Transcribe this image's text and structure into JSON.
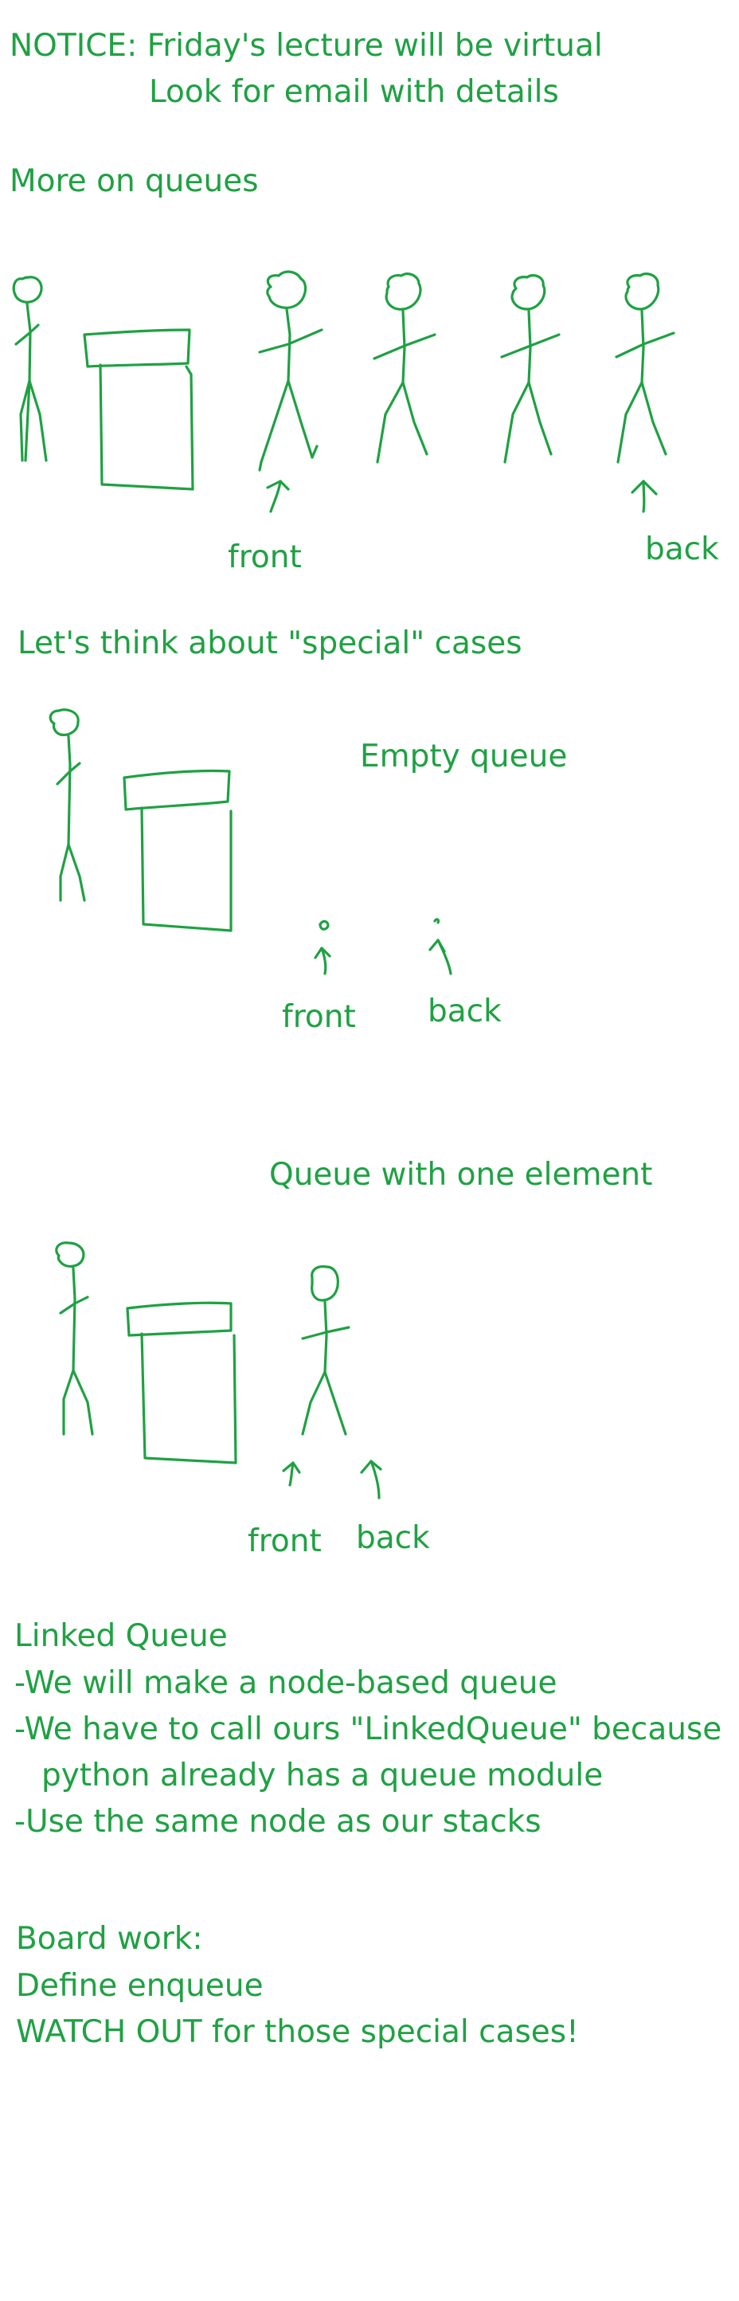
{
  "notice": {
    "line1": "NOTICE: Friday's lecture will be virtual",
    "line2": "Look for email with details"
  },
  "section_more_queues": "More on queues",
  "queue_diagram": {
    "front_label": "front",
    "back_label": "back"
  },
  "section_special_cases": "Let's think about \"special\" cases",
  "empty_queue": {
    "title": "Empty queue",
    "front_label": "front",
    "back_label": "back"
  },
  "one_element": {
    "title": "Queue with one element",
    "front_label": "front",
    "back_label": "back"
  },
  "linked_queue": {
    "title": "Linked Queue",
    "bullets": [
      "-We will make a node-based queue",
      "-We have to call ours \"LinkedQueue\" because",
      "python already has a queue module",
      "-Use the same node as our stacks"
    ]
  },
  "board_work": {
    "title": "Board work:",
    "lines": [
      "Define enqueue",
      "WATCH OUT for those special cases!"
    ]
  }
}
